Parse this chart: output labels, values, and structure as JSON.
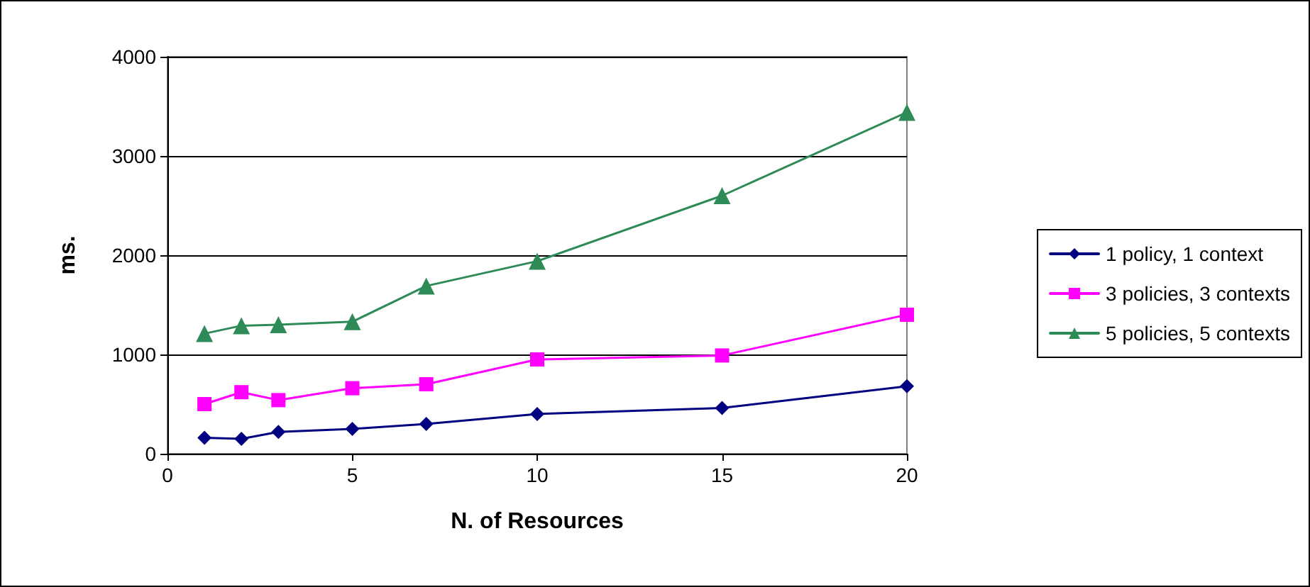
{
  "chart_data": {
    "type": "line",
    "xlabel": "N. of Resources",
    "ylabel": "ms.",
    "x": [
      1,
      2,
      3,
      5,
      7,
      10,
      15,
      20
    ],
    "xlim": [
      0,
      20
    ],
    "xticks": [
      0,
      5,
      10,
      15,
      20
    ],
    "ylim": [
      0,
      4000
    ],
    "yticks": [
      0,
      1000,
      2000,
      3000,
      4000
    ],
    "grid": "y",
    "legend": "right",
    "line_style": "solid",
    "series": [
      {
        "name": "1 policy, 1 context",
        "color": "#000080",
        "marker": "diamond",
        "values": [
          160,
          150,
          220,
          250,
          300,
          400,
          460,
          680
        ]
      },
      {
        "name": "3 policies, 3 contexts",
        "color": "#ff00ff",
        "marker": "square",
        "values": [
          500,
          620,
          540,
          660,
          700,
          950,
          990,
          1400
        ]
      },
      {
        "name": "5 policies, 5 contexts",
        "color": "#2e8b57",
        "marker": "triangle",
        "values": [
          1210,
          1290,
          1300,
          1330,
          1690,
          1940,
          2600,
          3440
        ]
      }
    ]
  }
}
